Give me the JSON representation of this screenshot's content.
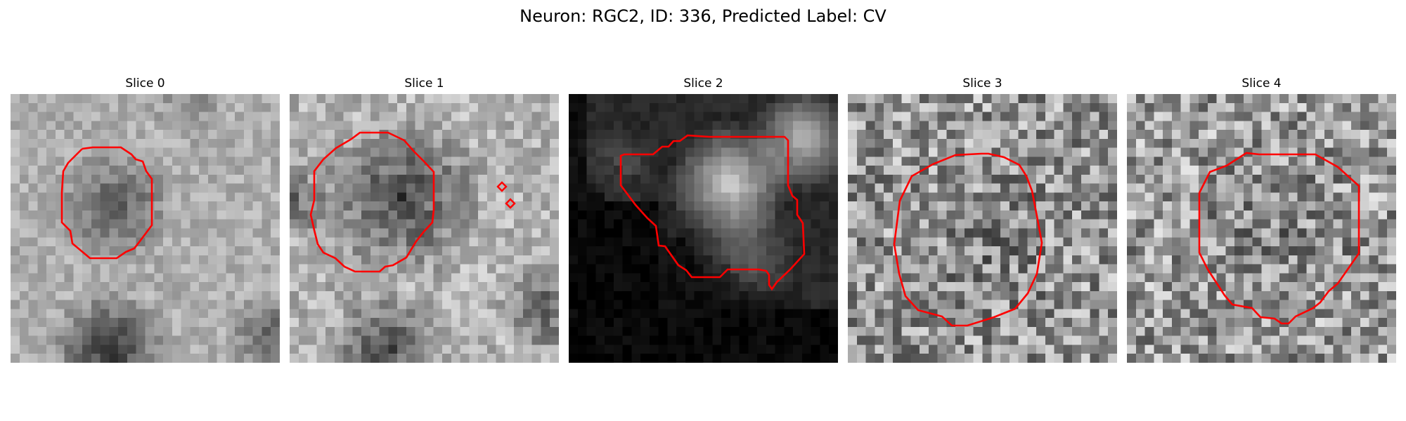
{
  "figure": {
    "title": "Neuron: RGC2, ID: 336, Predicted Label: CV"
  },
  "colors": {
    "contour": "#ff0000",
    "background": "#ffffff"
  },
  "panels": [
    {
      "label": "Slice 0"
    },
    {
      "label": "Slice 1"
    },
    {
      "label": "Slice 2"
    },
    {
      "label": "Slice 3"
    },
    {
      "label": "Slice 4"
    }
  ]
}
